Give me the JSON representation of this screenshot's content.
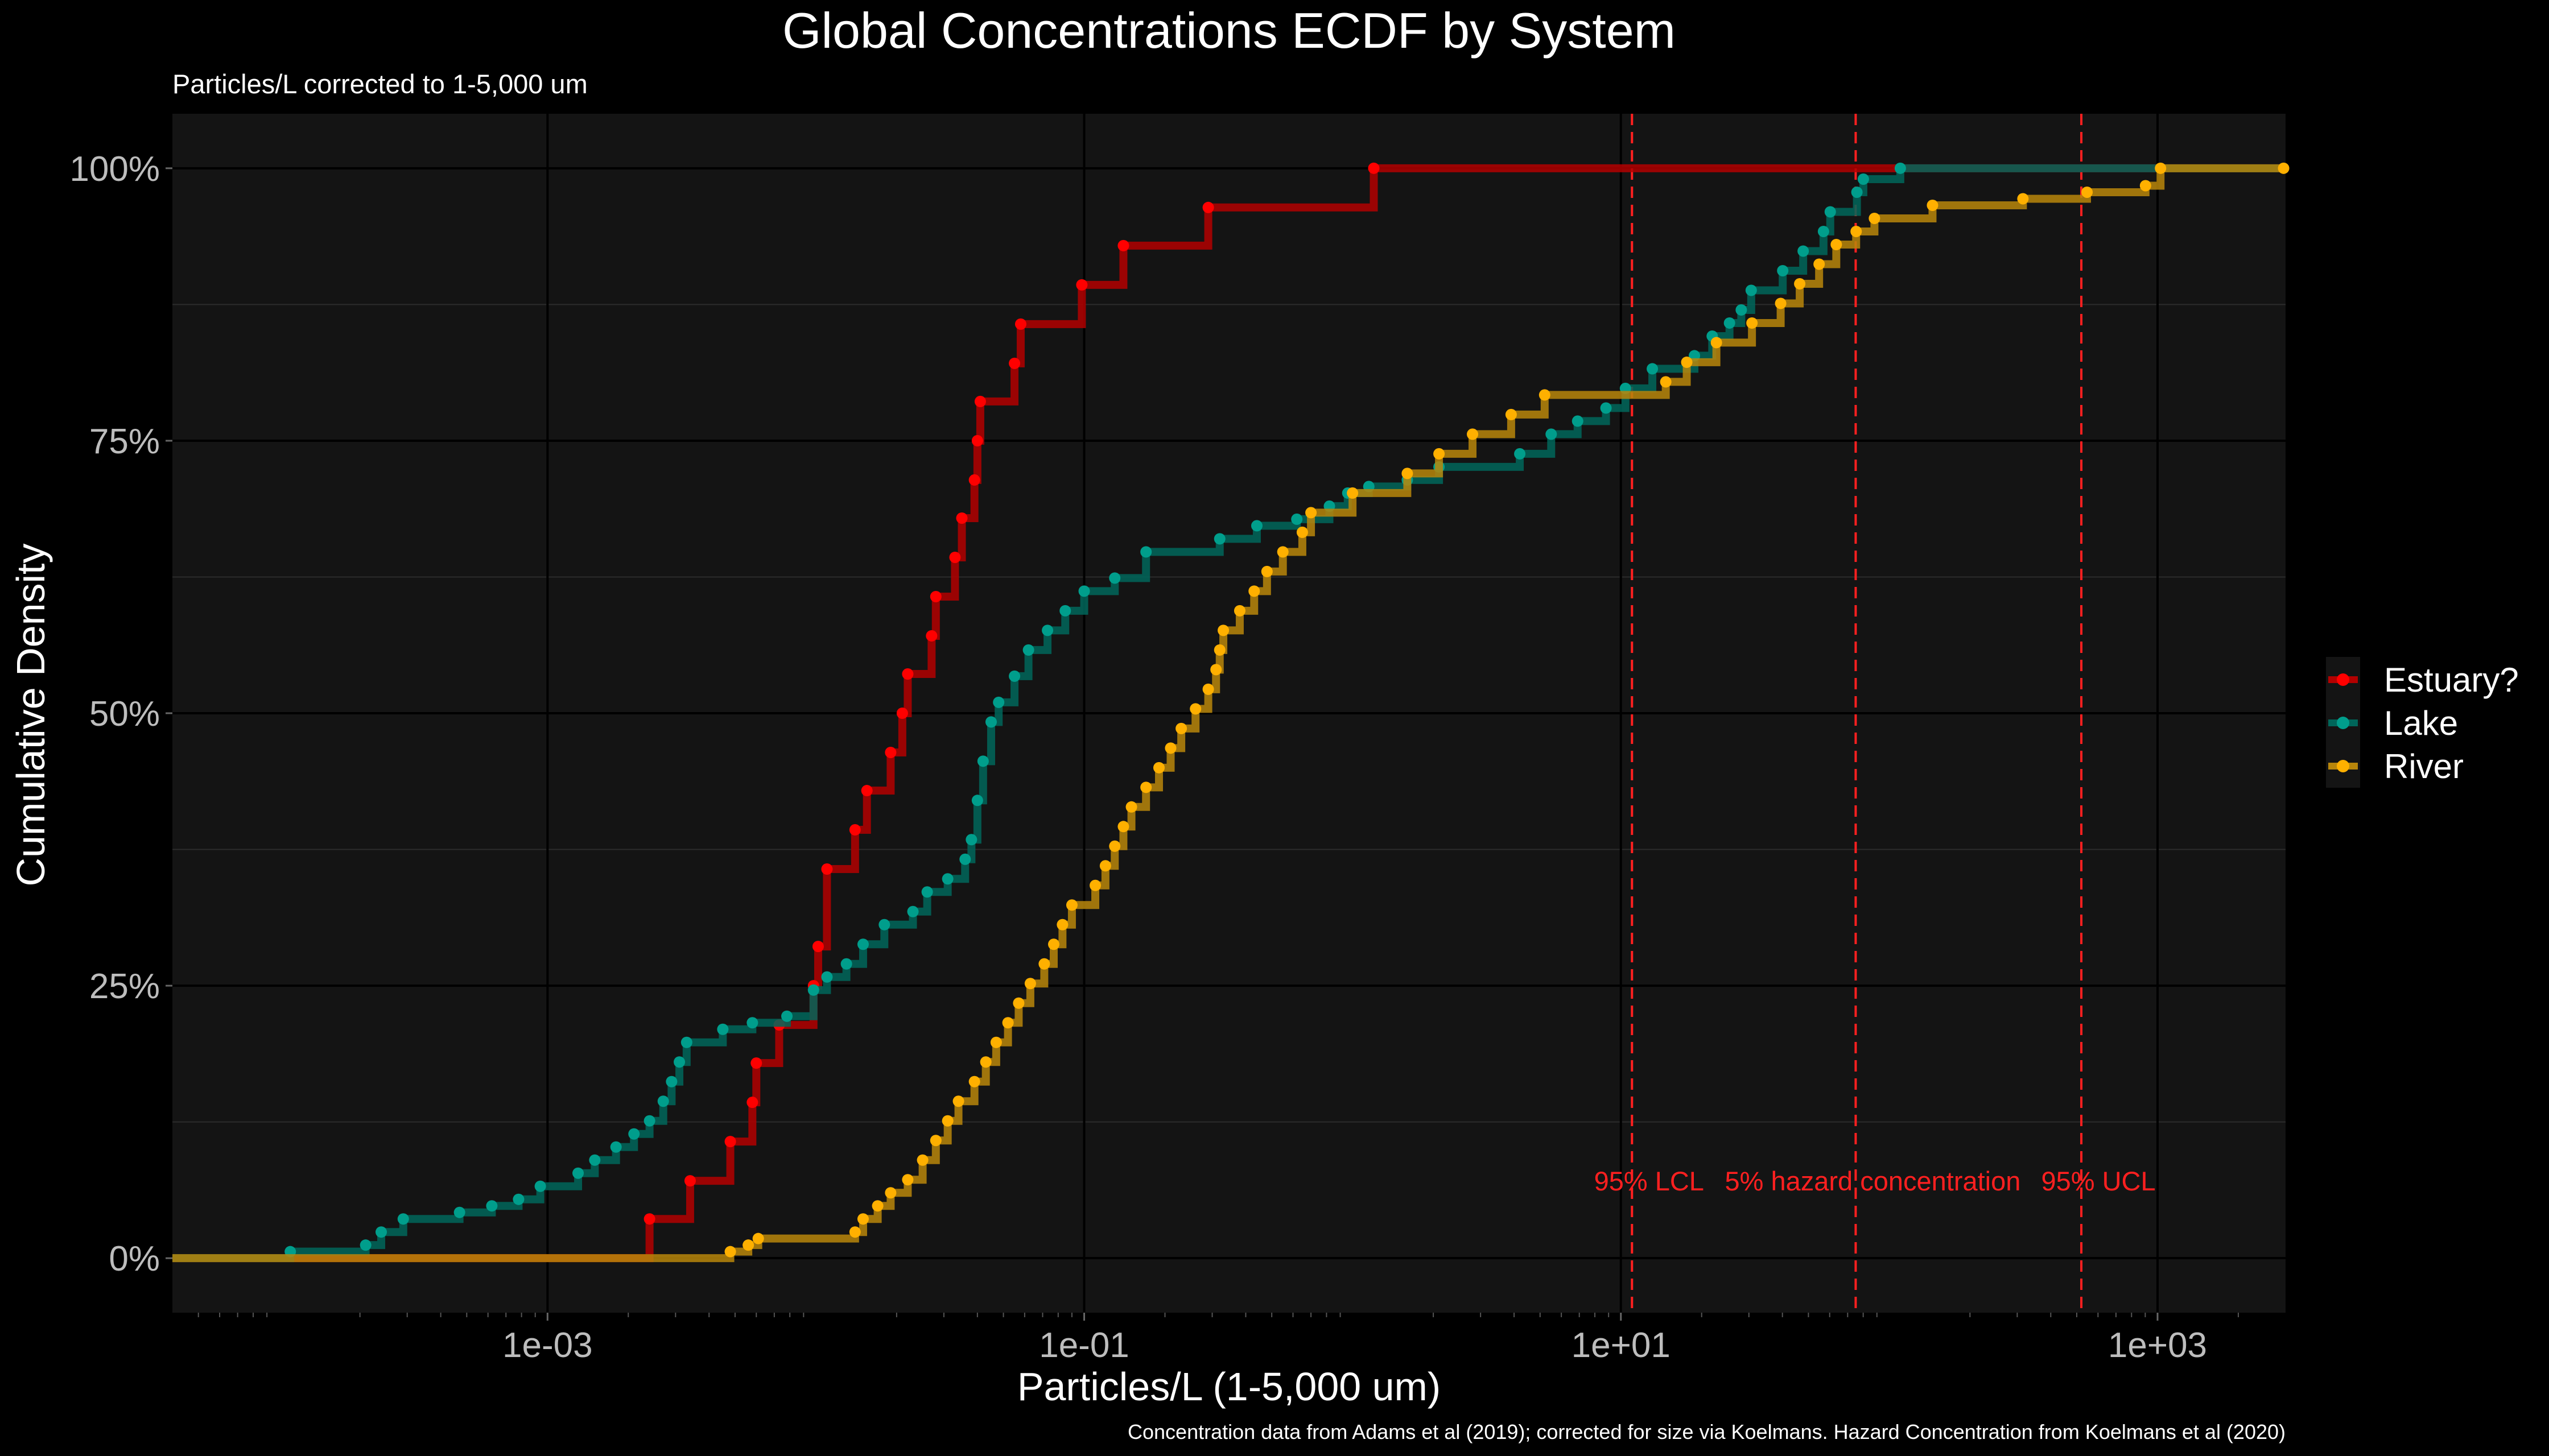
{
  "chart_data": {
    "type": "line",
    "title": "Global Concentrations ECDF by System",
    "subtitle": "Particles/L corrected to 1-5,000 um",
    "xlabel": "Particles/L (1-5,000 um)",
    "ylabel": "Cumulative Density",
    "caption": "Concentration data from Adams et al (2019); corrected for size via Koelmans. Hazard Concentration from Koelmans et al (2020)",
    "x_scale": "log10",
    "xlim": [
      4e-05,
      3000
    ],
    "ylim": [
      -0.05,
      1.05
    ],
    "x_ticks": [
      {
        "value": 0.001,
        "label": "1e-03"
      },
      {
        "value": 0.1,
        "label": "1e-01"
      },
      {
        "value": 10,
        "label": "1e+01"
      },
      {
        "value": 1000,
        "label": "1e+03"
      }
    ],
    "y_ticks": [
      {
        "value": 0,
        "label": "0%"
      },
      {
        "value": 0.25,
        "label": "25%"
      },
      {
        "value": 0.5,
        "label": "50%"
      },
      {
        "value": 0.75,
        "label": "75%"
      },
      {
        "value": 1,
        "label": "100%"
      }
    ],
    "grid": true,
    "legend_position": "right",
    "series": [
      {
        "name": "Estuary?",
        "color": "#ff0000",
        "line_color": "#b30000",
        "points": [
          [
            0.0024,
            0.036
          ],
          [
            0.0034,
            0.071
          ],
          [
            0.0048,
            0.107
          ],
          [
            0.0058,
            0.143
          ],
          [
            0.006,
            0.179
          ],
          [
            0.0073,
            0.214
          ],
          [
            0.0098,
            0.25
          ],
          [
            0.0102,
            0.286
          ],
          [
            0.011,
            0.357
          ],
          [
            0.014,
            0.393
          ],
          [
            0.0155,
            0.429
          ],
          [
            0.019,
            0.464
          ],
          [
            0.021,
            0.5
          ],
          [
            0.022,
            0.536
          ],
          [
            0.027,
            0.571
          ],
          [
            0.028,
            0.607
          ],
          [
            0.033,
            0.643
          ],
          [
            0.035,
            0.679
          ],
          [
            0.039,
            0.714
          ],
          [
            0.04,
            0.75
          ],
          [
            0.041,
            0.786
          ],
          [
            0.055,
            0.821
          ],
          [
            0.058,
            0.857
          ],
          [
            0.098,
            0.893
          ],
          [
            0.14,
            0.929
          ],
          [
            0.29,
            0.964
          ],
          [
            1.2,
            1.0
          ]
        ]
      },
      {
        "name": "Lake",
        "color": "#009e8c",
        "line_color": "#00665a",
        "points": [
          [
            0.00011,
            0.006
          ],
          [
            0.00021,
            0.012
          ],
          [
            0.00024,
            0.024
          ],
          [
            0.00029,
            0.036
          ],
          [
            0.00047,
            0.042
          ],
          [
            0.00062,
            0.048
          ],
          [
            0.00078,
            0.054
          ],
          [
            0.00094,
            0.066
          ],
          [
            0.0013,
            0.078
          ],
          [
            0.0015,
            0.09
          ],
          [
            0.0018,
            0.102
          ],
          [
            0.0021,
            0.114
          ],
          [
            0.0024,
            0.126
          ],
          [
            0.0027,
            0.144
          ],
          [
            0.0029,
            0.162
          ],
          [
            0.0031,
            0.18
          ],
          [
            0.0033,
            0.198
          ],
          [
            0.0045,
            0.21
          ],
          [
            0.0058,
            0.216
          ],
          [
            0.0078,
            0.222
          ],
          [
            0.0098,
            0.246
          ],
          [
            0.011,
            0.258
          ],
          [
            0.013,
            0.27
          ],
          [
            0.015,
            0.288
          ],
          [
            0.018,
            0.306
          ],
          [
            0.023,
            0.318
          ],
          [
            0.026,
            0.336
          ],
          [
            0.031,
            0.348
          ],
          [
            0.036,
            0.366
          ],
          [
            0.038,
            0.384
          ],
          [
            0.04,
            0.42
          ],
          [
            0.042,
            0.456
          ],
          [
            0.045,
            0.492
          ],
          [
            0.048,
            0.51
          ],
          [
            0.055,
            0.534
          ],
          [
            0.062,
            0.558
          ],
          [
            0.073,
            0.576
          ],
          [
            0.085,
            0.594
          ],
          [
            0.1,
            0.612
          ],
          [
            0.13,
            0.624
          ],
          [
            0.17,
            0.648
          ],
          [
            0.32,
            0.66
          ],
          [
            0.44,
            0.672
          ],
          [
            0.62,
            0.678
          ],
          [
            0.82,
            0.69
          ],
          [
            0.96,
            0.702
          ],
          [
            1.15,
            0.708
          ],
          [
            1.6,
            0.714
          ],
          [
            2.1,
            0.726
          ],
          [
            4.2,
            0.738
          ],
          [
            5.5,
            0.756
          ],
          [
            6.9,
            0.768
          ],
          [
            8.8,
            0.78
          ],
          [
            10.4,
            0.798
          ],
          [
            13.1,
            0.816
          ],
          [
            18.8,
            0.828
          ],
          [
            21.9,
            0.846
          ],
          [
            25.4,
            0.858
          ],
          [
            28.1,
            0.87
          ],
          [
            30.6,
            0.888
          ],
          [
            40.1,
            0.906
          ],
          [
            47.8,
            0.924
          ],
          [
            56.9,
            0.942
          ],
          [
            60.3,
            0.96
          ],
          [
            75.8,
            0.978
          ],
          [
            80.1,
            0.99
          ],
          [
            110,
            1.0
          ]
        ]
      },
      {
        "name": "River",
        "color": "#ffb000",
        "line_color": "#b8860b",
        "points": [
          [
            0.0048,
            0.006
          ],
          [
            0.0056,
            0.012
          ],
          [
            0.0061,
            0.018
          ],
          [
            0.014,
            0.024
          ],
          [
            0.015,
            0.036
          ],
          [
            0.017,
            0.048
          ],
          [
            0.019,
            0.06
          ],
          [
            0.022,
            0.072
          ],
          [
            0.025,
            0.09
          ],
          [
            0.028,
            0.108
          ],
          [
            0.031,
            0.126
          ],
          [
            0.034,
            0.144
          ],
          [
            0.039,
            0.162
          ],
          [
            0.043,
            0.18
          ],
          [
            0.047,
            0.198
          ],
          [
            0.052,
            0.216
          ],
          [
            0.057,
            0.234
          ],
          [
            0.063,
            0.252
          ],
          [
            0.071,
            0.27
          ],
          [
            0.077,
            0.288
          ],
          [
            0.083,
            0.306
          ],
          [
            0.09,
            0.324
          ],
          [
            0.11,
            0.342
          ],
          [
            0.12,
            0.36
          ],
          [
            0.13,
            0.378
          ],
          [
            0.14,
            0.396
          ],
          [
            0.15,
            0.414
          ],
          [
            0.17,
            0.432
          ],
          [
            0.19,
            0.45
          ],
          [
            0.21,
            0.468
          ],
          [
            0.23,
            0.486
          ],
          [
            0.26,
            0.504
          ],
          [
            0.29,
            0.522
          ],
          [
            0.31,
            0.54
          ],
          [
            0.32,
            0.558
          ],
          [
            0.33,
            0.576
          ],
          [
            0.38,
            0.594
          ],
          [
            0.43,
            0.612
          ],
          [
            0.48,
            0.63
          ],
          [
            0.55,
            0.648
          ],
          [
            0.65,
            0.666
          ],
          [
            0.7,
            0.684
          ],
          [
            1.0,
            0.702
          ],
          [
            1.6,
            0.72
          ],
          [
            2.1,
            0.738
          ],
          [
            2.8,
            0.756
          ],
          [
            3.9,
            0.774
          ],
          [
            5.2,
            0.792
          ],
          [
            14.7,
            0.804
          ],
          [
            17.6,
            0.822
          ],
          [
            22.7,
            0.84
          ],
          [
            30.8,
            0.858
          ],
          [
            39.4,
            0.876
          ],
          [
            46.4,
            0.894
          ],
          [
            54.8,
            0.912
          ],
          [
            63.5,
            0.93
          ],
          [
            75.3,
            0.942
          ],
          [
            88.1,
            0.954
          ],
          [
            145,
            0.966
          ],
          [
            315,
            0.972
          ],
          [
            546,
            0.978
          ],
          [
            902,
            0.984
          ],
          [
            1026,
            1.0
          ],
          [
            2950,
            1.0
          ]
        ]
      }
    ],
    "reference_lines": [
      {
        "x": 11,
        "label": "95% LCL",
        "color": "#ff2020"
      },
      {
        "x": 75,
        "label": "5% hazard concentration",
        "color": "#ff2020"
      },
      {
        "x": 520,
        "label": "95% UCL",
        "color": "#ff2020"
      }
    ]
  }
}
